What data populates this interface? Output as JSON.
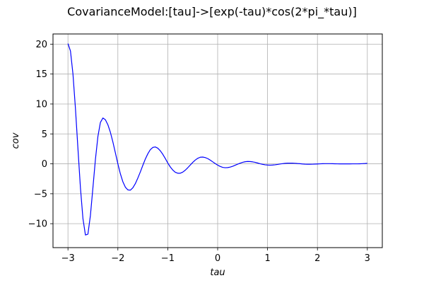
{
  "chart_data": {
    "type": "line",
    "title": "CovarianceModel:[tau]->[exp(-tau)*cos(2*pi_*tau)]",
    "xlabel": "tau",
    "ylabel": "cov",
    "xlim": [
      -3.3,
      3.3
    ],
    "ylim": [
      -14.0,
      21.7
    ],
    "xticks": [
      -3,
      -2,
      -1,
      0,
      1,
      2,
      3
    ],
    "xtick_labels": [
      "−3",
      "−2",
      "−1",
      "0",
      "1",
      "2",
      "3"
    ],
    "yticks": [
      -10,
      -5,
      0,
      5,
      10,
      15,
      20
    ],
    "ytick_labels": [
      "−10",
      "−5",
      "0",
      "5",
      "10",
      "15",
      "20"
    ],
    "grid": true,
    "series": [
      {
        "color": "#0000ff",
        "x": [
          -3.0,
          -2.95,
          -2.9,
          -2.85,
          -2.8,
          -2.75,
          -2.7,
          -2.65,
          -2.6,
          -2.55,
          -2.5,
          -2.45,
          -2.4,
          -2.35,
          -2.3,
          -2.25,
          -2.2,
          -2.15,
          -2.1,
          -2.05,
          -2.0,
          -1.95,
          -1.9,
          -1.85,
          -1.8,
          -1.75,
          -1.7,
          -1.65,
          -1.6,
          -1.55,
          -1.5,
          -1.45,
          -1.4,
          -1.35,
          -1.3,
          -1.25,
          -1.2,
          -1.15,
          -1.1,
          -1.05,
          -1.0,
          -0.95,
          -0.9,
          -0.85,
          -0.8,
          -0.75,
          -0.7,
          -0.65,
          -0.6,
          -0.55,
          -0.5,
          -0.45,
          -0.4,
          -0.35,
          -0.3,
          -0.25,
          -0.2,
          -0.15,
          -0.1,
          -0.05,
          0.0,
          0.05,
          0.1,
          0.15,
          0.2,
          0.25,
          0.3,
          0.35,
          0.4,
          0.45,
          0.5,
          0.55,
          0.6,
          0.65,
          0.7,
          0.75,
          0.8,
          0.85,
          0.9,
          0.95,
          1.0,
          1.05,
          1.1,
          1.15,
          1.2,
          1.25,
          1.3,
          1.35,
          1.4,
          1.45,
          1.5,
          1.55,
          1.6,
          1.65,
          1.7,
          1.75,
          1.8,
          1.85,
          1.9,
          1.95,
          2.0,
          2.05,
          2.1,
          2.15,
          2.2,
          2.25,
          2.3,
          2.35,
          2.4,
          2.45,
          2.5,
          2.55,
          2.6,
          2.65,
          2.7,
          2.75,
          2.8,
          2.85,
          2.9,
          2.95,
          3.0
        ],
        "y": [
          20.09,
          18.86,
          15.01,
          9.23,
          2.53,
          -4.01,
          -9.13,
          -11.89,
          -11.74,
          -8.62,
          -4.01,
          0.73,
          4.57,
          6.92,
          7.66,
          7.37,
          6.53,
          5.27,
          3.66,
          1.84,
          0.0,
          -1.66,
          -2.99,
          -3.9,
          -4.35,
          -4.4,
          -4.01,
          -3.31,
          -2.38,
          -1.36,
          -0.26,
          0.79,
          1.67,
          2.36,
          2.74,
          2.82,
          2.62,
          2.19,
          1.6,
          0.9,
          0.15,
          -0.51,
          -1.03,
          -1.4,
          -1.57,
          -1.57,
          -1.39,
          -1.07,
          -0.66,
          -0.21,
          0.24,
          0.62,
          0.92,
          1.1,
          1.13,
          1.05,
          0.88,
          0.63,
          0.34,
          0.05,
          -0.21,
          -0.43,
          -0.59,
          -0.65,
          -0.63,
          -0.55,
          -0.41,
          -0.24,
          -0.06,
          0.11,
          0.25,
          0.35,
          0.39,
          0.38,
          0.33,
          0.25,
          0.14,
          0.02,
          -0.08,
          -0.16,
          -0.2,
          -0.22,
          -0.2,
          -0.16,
          -0.1,
          -0.03,
          0.03,
          0.08,
          0.11,
          0.12,
          0.11,
          0.09,
          0.05,
          0.02,
          -0.02,
          -0.05,
          -0.07,
          -0.07,
          -0.06,
          -0.04,
          -0.02,
          0.0,
          0.02,
          0.03,
          0.03,
          0.03,
          0.02,
          0.01,
          0.0,
          -0.01,
          -0.01,
          -0.01,
          -0.01,
          -0.01,
          0.0,
          0.0,
          0.0,
          0.01,
          0.03,
          0.05,
          0.09
        ]
      }
    ]
  }
}
